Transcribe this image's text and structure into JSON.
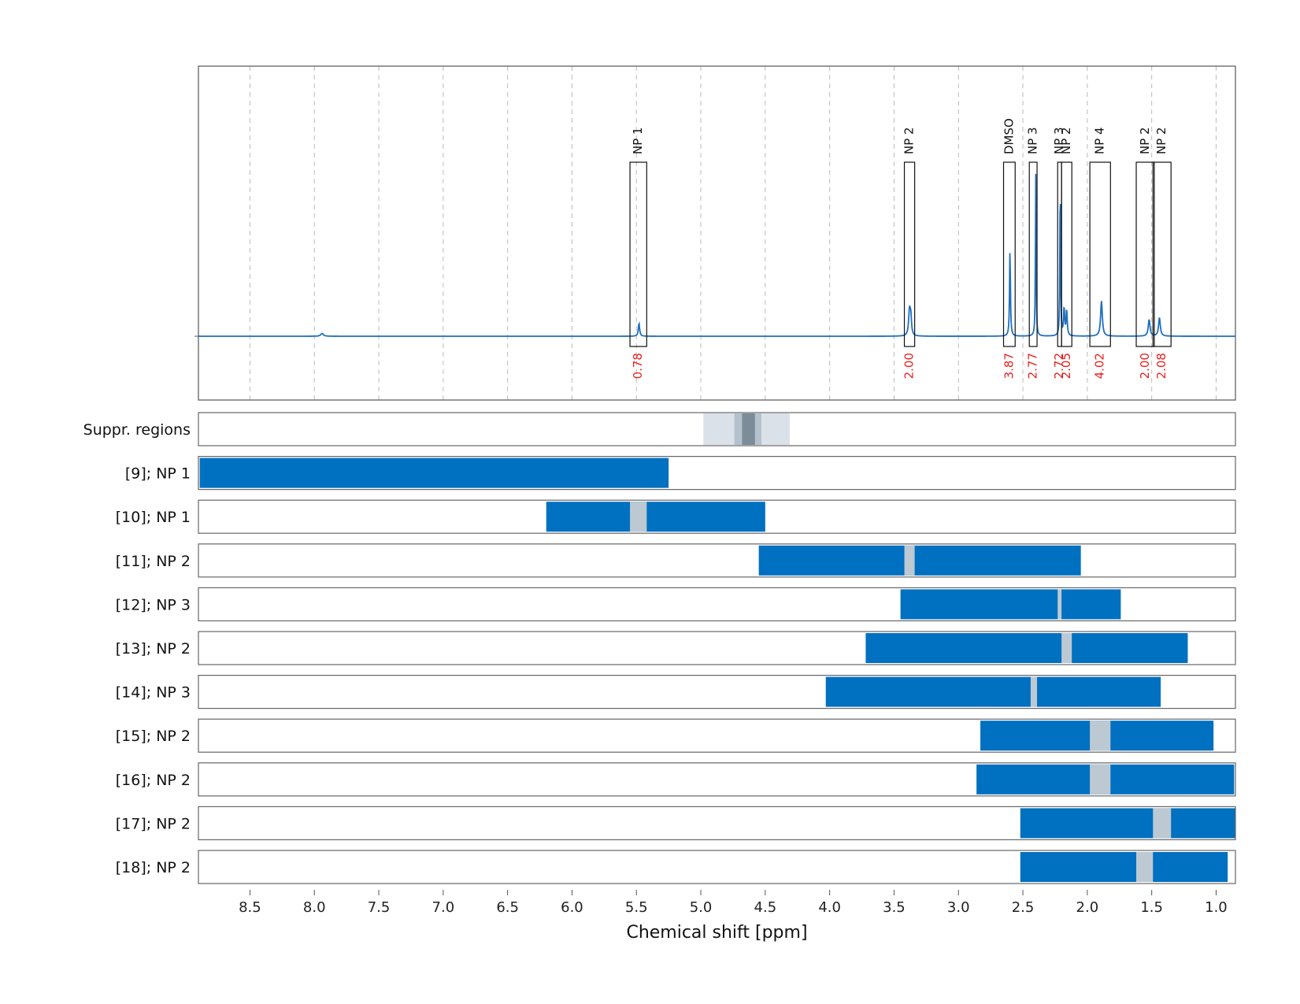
{
  "chart_data": {
    "type": "nmr-spectrum-with-range-bars",
    "xlabel": "Chemical shift [ppm]",
    "xlim": [
      8.9,
      0.85
    ],
    "x_ticks": [
      "8.5",
      "8.0",
      "7.5",
      "7.0",
      "6.5",
      "6.0",
      "5.5",
      "5.0",
      "4.5",
      "4.0",
      "3.5",
      "3.0",
      "2.5",
      "2.0",
      "1.5",
      "1.0"
    ],
    "colors": {
      "spectrum": "#1f6fbf",
      "bar": "#0070c0",
      "gap": "#bcc9d3",
      "integral": "#e8201d",
      "frame": "#555555",
      "grid": "#bbbbbb"
    },
    "spectrum_peaks": [
      {
        "ppm": 7.94,
        "height": 0.015,
        "width": 0.012
      },
      {
        "ppm": 5.48,
        "height": 0.07,
        "width": 0.006
      },
      {
        "ppm": 3.38,
        "height": 0.14,
        "width": 0.008
      },
      {
        "ppm": 3.37,
        "height": 0.09,
        "width": 0.006
      },
      {
        "ppm": 2.6,
        "height": 0.47,
        "width": 0.004
      },
      {
        "ppm": 2.4,
        "height": 0.89,
        "width": 0.003
      },
      {
        "ppm": 2.21,
        "height": 0.9,
        "width": 0.003
      },
      {
        "ppm": 2.18,
        "height": 0.15,
        "width": 0.005
      },
      {
        "ppm": 2.16,
        "height": 0.14,
        "width": 0.005
      },
      {
        "ppm": 1.89,
        "height": 0.19,
        "width": 0.008
      },
      {
        "ppm": 1.52,
        "height": 0.09,
        "width": 0.008
      },
      {
        "ppm": 1.44,
        "height": 0.1,
        "width": 0.008
      }
    ],
    "annotations": [
      {
        "label": "NP 1",
        "integral": "0.78",
        "x1": 5.55,
        "x2": 5.42
      },
      {
        "label": "NP 2",
        "integral": "2.00",
        "x1": 3.42,
        "x2": 3.34
      },
      {
        "label": "DMSO",
        "integral": "3.87",
        "x1": 2.65,
        "x2": 2.56
      },
      {
        "label": "NP 3",
        "integral": "2.77",
        "x1": 2.45,
        "x2": 2.39
      },
      {
        "label": "NP 3",
        "integral": "2.72",
        "x1": 2.23,
        "x2": 2.2
      },
      {
        "label": "NP 2",
        "integral": "2.05",
        "x1": 2.2,
        "x2": 2.12
      },
      {
        "label": "NP 4",
        "integral": "4.02",
        "x1": 1.98,
        "x2": 1.82
      },
      {
        "label": "NP 2",
        "integral": "2.00",
        "x1": 1.62,
        "x2": 1.48
      },
      {
        "label": "NP 2",
        "integral": "2.08",
        "x1": 1.49,
        "x2": 1.35
      }
    ],
    "suppression": {
      "label": "Suppr. regions",
      "regions": [
        {
          "x1": 4.98,
          "x2": 4.31,
          "shade": "#dae1e8"
        },
        {
          "x1": 4.74,
          "x2": 4.53,
          "shade": "#b4c2ce"
        },
        {
          "x1": 4.68,
          "x2": 4.58,
          "shade": "#7c8c99"
        }
      ]
    },
    "rows": [
      {
        "label": "[9]; NP 1",
        "range": [
          8.89,
          5.25
        ],
        "gap": null
      },
      {
        "label": "[10]; NP 1",
        "range": [
          6.2,
          4.5
        ],
        "gap": [
          5.55,
          5.42
        ]
      },
      {
        "label": "[11]; NP 2",
        "range": [
          4.55,
          2.05
        ],
        "gap": [
          3.42,
          3.34
        ]
      },
      {
        "label": "[12]; NP 3",
        "range": [
          3.45,
          1.74
        ],
        "gap": [
          2.23,
          2.2
        ]
      },
      {
        "label": "[13]; NP 2",
        "range": [
          3.72,
          1.22
        ],
        "gap": [
          2.2,
          2.12
        ]
      },
      {
        "label": "[14]; NP 3",
        "range": [
          4.03,
          1.43
        ],
        "gap": [
          2.44,
          2.39
        ]
      },
      {
        "label": "[15]; NP 2",
        "range": [
          2.83,
          1.02
        ],
        "gap": [
          1.98,
          1.82
        ]
      },
      {
        "label": "[16]; NP 2",
        "range": [
          2.86,
          0.86
        ],
        "gap": [
          1.98,
          1.82
        ]
      },
      {
        "label": "[17]; NP 2",
        "range": [
          2.52,
          0.85
        ],
        "gap": [
          1.49,
          1.35
        ]
      },
      {
        "label": "[18]; NP 2",
        "range": [
          2.52,
          0.91
        ],
        "gap": [
          1.62,
          1.49
        ]
      }
    ]
  }
}
